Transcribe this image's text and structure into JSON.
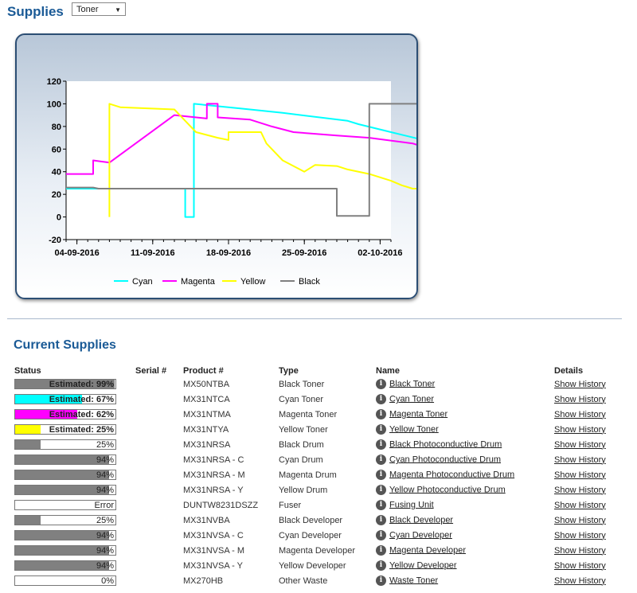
{
  "header": {
    "title": "Supplies",
    "dropdown_value": "Toner"
  },
  "chart_data": {
    "type": "line",
    "x_ticks": [
      "04-09-2016",
      "11-09-2016",
      "18-09-2016",
      "25-09-2016",
      "02-10-2016"
    ],
    "y_ticks": [
      "120",
      "100",
      "80",
      "60",
      "40",
      "20",
      "0",
      "-20"
    ],
    "xlim": [
      "2016-09-03",
      "2016-10-03"
    ],
    "ylim": [
      -20,
      120
    ],
    "grid": false,
    "legend_position": "bottom",
    "series": [
      {
        "name": "Cyan",
        "color": "#00ffff",
        "points": [
          [
            0,
            25
          ],
          [
            11,
            25
          ],
          [
            11,
            0
          ],
          [
            11.8,
            0
          ],
          [
            11.8,
            100
          ],
          [
            16,
            96
          ],
          [
            20,
            92
          ],
          [
            26,
            85
          ],
          [
            27,
            82
          ],
          [
            30,
            75
          ],
          [
            33,
            68
          ],
          [
            36,
            66
          ]
        ]
      },
      {
        "name": "Magenta",
        "color": "#ff00ff",
        "points": [
          [
            0,
            38
          ],
          [
            2.5,
            38
          ],
          [
            2.5,
            50
          ],
          [
            4,
            48
          ],
          [
            10,
            90
          ],
          [
            13,
            87
          ],
          [
            13,
            100
          ],
          [
            14,
            100
          ],
          [
            14,
            88
          ],
          [
            17,
            86
          ],
          [
            19,
            80
          ],
          [
            21,
            75
          ],
          [
            25,
            72
          ],
          [
            28,
            70
          ],
          [
            32,
            65
          ],
          [
            33,
            62
          ],
          [
            36,
            62
          ]
        ]
      },
      {
        "name": "Yellow",
        "color": "#ffff00",
        "points": [
          [
            4,
            0
          ],
          [
            4,
            100
          ],
          [
            5,
            97
          ],
          [
            10,
            95
          ],
          [
            11,
            85
          ],
          [
            12,
            75
          ],
          [
            14,
            70
          ],
          [
            15,
            68
          ],
          [
            15,
            75
          ],
          [
            18,
            75
          ],
          [
            18.5,
            65
          ],
          [
            19.5,
            55
          ],
          [
            20,
            50
          ],
          [
            21,
            45
          ],
          [
            22,
            40
          ],
          [
            23,
            46
          ],
          [
            25,
            45
          ],
          [
            26,
            42
          ],
          [
            28,
            38
          ],
          [
            30,
            32
          ],
          [
            31,
            28
          ],
          [
            32,
            25
          ],
          [
            36,
            25
          ]
        ]
      },
      {
        "name": "Black",
        "color": "#808080",
        "points": [
          [
            0,
            26
          ],
          [
            2.5,
            26
          ],
          [
            3,
            25
          ],
          [
            25,
            25
          ],
          [
            25,
            1
          ],
          [
            28,
            1
          ],
          [
            28,
            100
          ],
          [
            36,
            100
          ]
        ]
      }
    ]
  },
  "section_title": "Current Supplies",
  "table": {
    "headers": {
      "status": "Status",
      "serial": "Serial #",
      "product": "Product #",
      "type": "Type",
      "name": "Name",
      "details": "Details"
    },
    "rows": [
      {
        "fill": 0.99,
        "color": "#808080",
        "label": "Estimated: 99%",
        "serial": "",
        "product": "MX50NTBA",
        "type": "Black Toner",
        "name": "Black Toner",
        "details": "Show History"
      },
      {
        "fill": 0.67,
        "color": "#00ffff",
        "label": "Estimated: 67%",
        "serial": "",
        "product": "MX31NTCA",
        "type": "Cyan Toner",
        "name": "Cyan Toner",
        "details": "Show History"
      },
      {
        "fill": 0.62,
        "color": "#ff00ff",
        "label": "Estimated: 62%",
        "serial": "",
        "product": "MX31NTMA",
        "type": "Magenta Toner",
        "name": "Magenta Toner",
        "details": "Show History"
      },
      {
        "fill": 0.25,
        "color": "#ffff00",
        "label": "Estimated: 25%",
        "serial": "",
        "product": "MX31NTYA",
        "type": "Yellow Toner",
        "name": "Yellow Toner",
        "details": "Show History"
      },
      {
        "fill": 0.25,
        "color": "#808080",
        "label": "25%",
        "serial": "",
        "product": "MX31NRSA",
        "type": "Black Drum",
        "name": "Black Photoconductive Drum",
        "details": "Show History"
      },
      {
        "fill": 0.94,
        "color": "#808080",
        "label": "94%",
        "serial": "",
        "product": "MX31NRSA - C",
        "type": "Cyan Drum",
        "name": "Cyan Photoconductive Drum",
        "details": "Show History"
      },
      {
        "fill": 0.94,
        "color": "#808080",
        "label": "94%",
        "serial": "",
        "product": "MX31NRSA - M",
        "type": "Magenta Drum",
        "name": "Magenta Photoconductive Drum",
        "details": "Show History"
      },
      {
        "fill": 0.94,
        "color": "#808080",
        "label": "94%",
        "serial": "",
        "product": "MX31NRSA - Y",
        "type": "Yellow Drum",
        "name": "Yellow Photoconductive Drum",
        "details": "Show History"
      },
      {
        "fill": 0,
        "color": "#808080",
        "label": "Error",
        "serial": "",
        "product": "DUNTW8231DSZZ",
        "type": "Fuser",
        "name": "Fusing Unit",
        "details": "Show History"
      },
      {
        "fill": 0.25,
        "color": "#808080",
        "label": "25%",
        "serial": "",
        "product": "MX31NVBA",
        "type": "Black Developer",
        "name": "Black Developer",
        "details": "Show History"
      },
      {
        "fill": 0.94,
        "color": "#808080",
        "label": "94%",
        "serial": "",
        "product": "MX31NVSA - C",
        "type": "Cyan Developer",
        "name": "Cyan Developer",
        "details": "Show History"
      },
      {
        "fill": 0.94,
        "color": "#808080",
        "label": "94%",
        "serial": "",
        "product": "MX31NVSA - M",
        "type": "Magenta Developer",
        "name": "Magenta Developer",
        "details": "Show History"
      },
      {
        "fill": 0.94,
        "color": "#808080",
        "label": "94%",
        "serial": "",
        "product": "MX31NVSA - Y",
        "type": "Yellow Developer",
        "name": "Yellow Developer",
        "details": "Show History"
      },
      {
        "fill": 0,
        "color": "#808080",
        "label": "0%",
        "serial": "",
        "product": "MX270HB",
        "type": "Other Waste",
        "name": "Waste Toner",
        "details": "Show History"
      }
    ]
  }
}
